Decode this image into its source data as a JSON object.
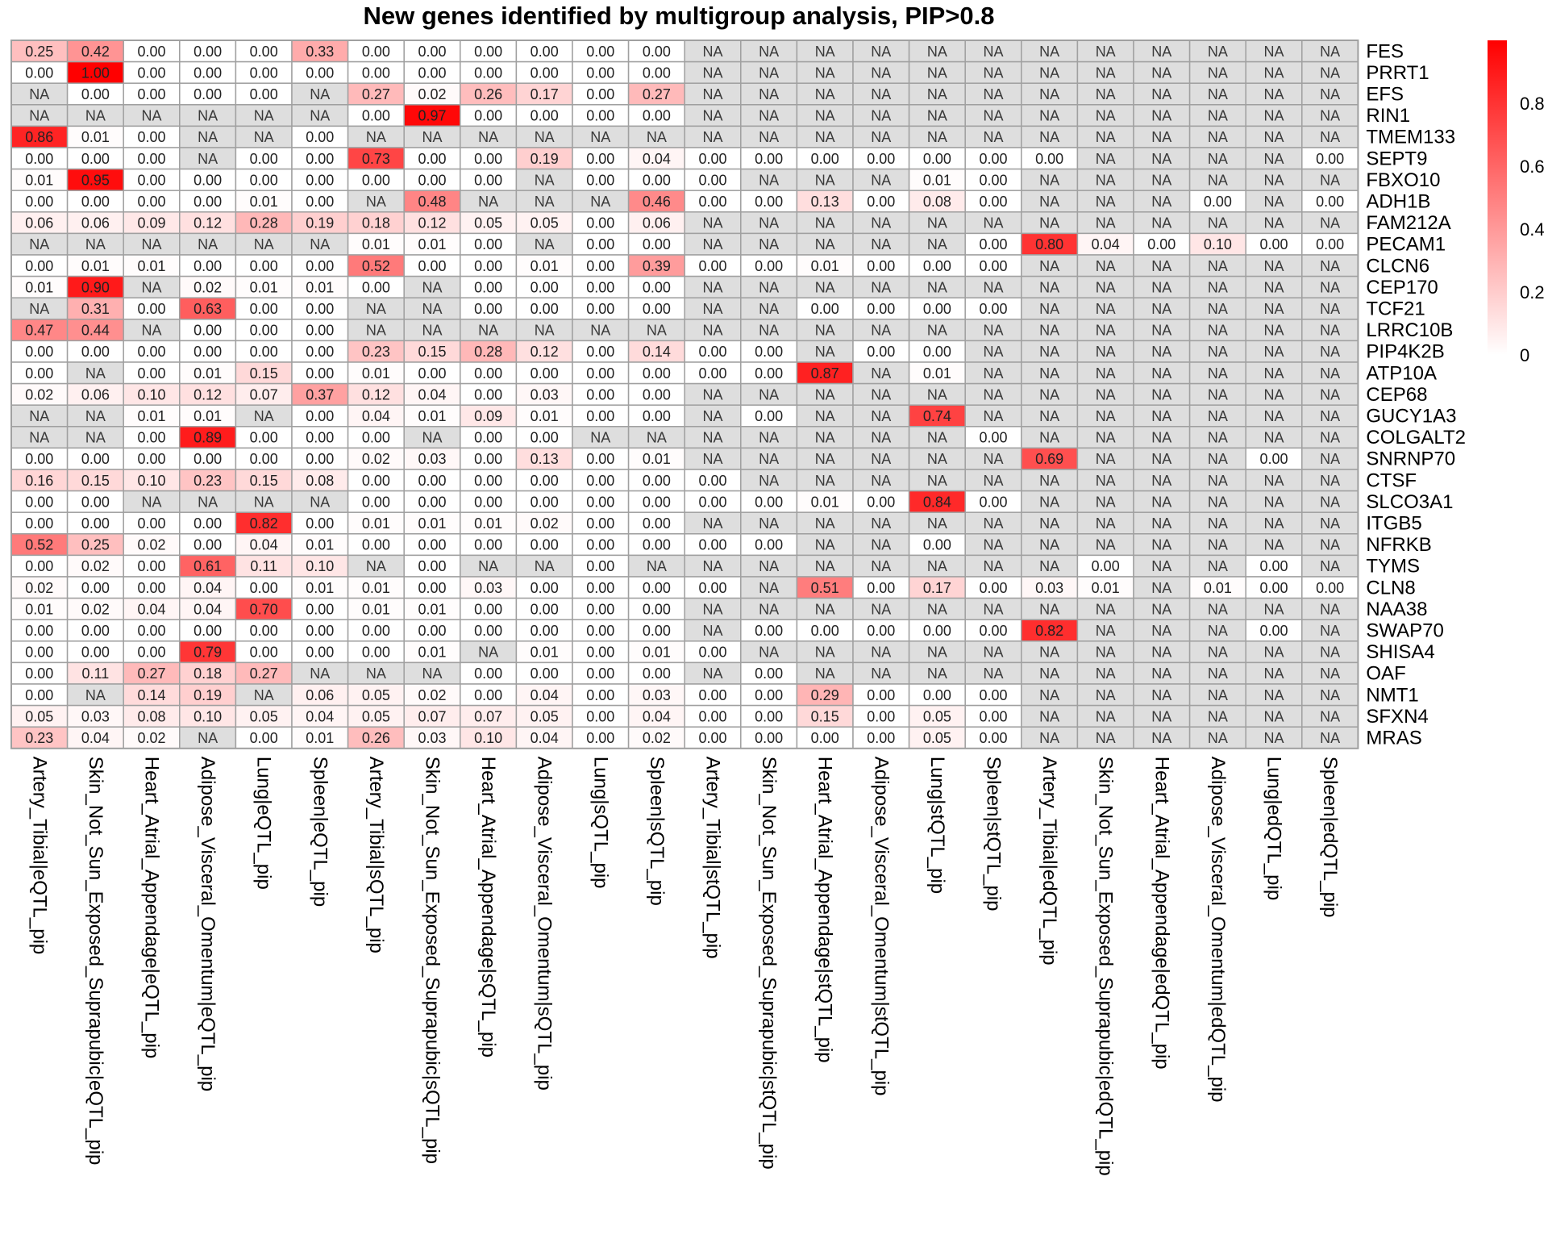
{
  "chart_data": {
    "type": "heatmap",
    "title": "New genes identified by multigroup analysis, PIP>0.8",
    "columns": [
      "Artery_Tibial|eQTL_pip",
      "Skin_Not_Sun_Exposed_Suprapubic|eQTL_pip",
      "Heart_Atrial_Appendage|eQTL_pip",
      "Adipose_Visceral_Omentum|eQTL_pip",
      "Lung|eQTL_pip",
      "Spleen|eQTL_pip",
      "Artery_Tibial|sQTL_pip",
      "Skin_Not_Sun_Exposed_Suprapubic|sQTL_pip",
      "Heart_Atrial_Appendage|sQTL_pip",
      "Adipose_Visceral_Omentum|sQTL_pip",
      "Lung|sQTL_pip",
      "Spleen|sQTL_pip",
      "Artery_Tibial|stQTL_pip",
      "Skin_Not_Sun_Exposed_Suprapubic|stQTL_pip",
      "Heart_Atrial_Appendage|stQTL_pip",
      "Adipose_Visceral_Omentum|stQTL_pip",
      "Lung|stQTL_pip",
      "Spleen|stQTL_pip",
      "Artery_Tibial|edQTL_pip",
      "Skin_Not_Sun_Exposed_Suprapubic|edQTL_pip",
      "Heart_Atrial_Appendage|edQTL_pip",
      "Adipose_Visceral_Omentum|edQTL_pip",
      "Lung|edQTL_pip",
      "Spleen|edQTL_pip"
    ],
    "rows": [
      "FES",
      "PRRT1",
      "EFS",
      "RIN1",
      "TMEM133",
      "SEPT9",
      "FBXO10",
      "ADH1B",
      "FAM212A",
      "PECAM1",
      "CLCN6",
      "CEP170",
      "TCF21",
      "LRRC10B",
      "PIP4K2B",
      "ATP10A",
      "CEP68",
      "GUCY1A3",
      "COLGALT2",
      "SNRNP70",
      "CTSF",
      "SLCO3A1",
      "ITGB5",
      "NFRKB",
      "TYMS",
      "CLN8",
      "NAA38",
      "SWAP70",
      "SHISA4",
      "OAF",
      "NMT1",
      "SFXN4",
      "MRAS"
    ],
    "values": [
      [
        "0.25",
        "0.42",
        "0.00",
        "0.00",
        "0.00",
        "0.33",
        "0.00",
        "0.00",
        "0.00",
        "0.00",
        "0.00",
        "0.00",
        "NA",
        "NA",
        "NA",
        "NA",
        "NA",
        "NA",
        "NA",
        "NA",
        "NA",
        "NA",
        "NA",
        "NA"
      ],
      [
        "0.00",
        "1.00",
        "0.00",
        "0.00",
        "0.00",
        "0.00",
        "0.00",
        "0.00",
        "0.00",
        "0.00",
        "0.00",
        "0.00",
        "NA",
        "NA",
        "NA",
        "NA",
        "NA",
        "NA",
        "NA",
        "NA",
        "NA",
        "NA",
        "NA",
        "NA"
      ],
      [
        "NA",
        "0.00",
        "0.00",
        "0.00",
        "0.00",
        "NA",
        "0.27",
        "0.02",
        "0.26",
        "0.17",
        "0.00",
        "0.27",
        "NA",
        "NA",
        "NA",
        "NA",
        "NA",
        "NA",
        "NA",
        "NA",
        "NA",
        "NA",
        "NA",
        "NA"
      ],
      [
        "NA",
        "NA",
        "NA",
        "NA",
        "NA",
        "NA",
        "0.00",
        "0.97",
        "0.00",
        "0.00",
        "0.00",
        "0.00",
        "NA",
        "NA",
        "NA",
        "NA",
        "NA",
        "NA",
        "NA",
        "NA",
        "NA",
        "NA",
        "NA",
        "NA"
      ],
      [
        "0.86",
        "0.01",
        "0.00",
        "NA",
        "NA",
        "0.00",
        "NA",
        "NA",
        "NA",
        "NA",
        "NA",
        "NA",
        "NA",
        "NA",
        "NA",
        "NA",
        "NA",
        "NA",
        "NA",
        "NA",
        "NA",
        "NA",
        "NA",
        "NA"
      ],
      [
        "0.00",
        "0.00",
        "0.00",
        "NA",
        "0.00",
        "0.00",
        "0.73",
        "0.00",
        "0.00",
        "0.19",
        "0.00",
        "0.04",
        "0.00",
        "0.00",
        "0.00",
        "0.00",
        "0.00",
        "0.00",
        "0.00",
        "NA",
        "NA",
        "NA",
        "NA",
        "0.00"
      ],
      [
        "0.01",
        "0.95",
        "0.00",
        "0.00",
        "0.00",
        "0.00",
        "0.00",
        "0.00",
        "0.00",
        "NA",
        "0.00",
        "0.00",
        "0.00",
        "NA",
        "NA",
        "NA",
        "0.01",
        "0.00",
        "NA",
        "NA",
        "NA",
        "NA",
        "NA",
        "NA"
      ],
      [
        "0.00",
        "0.00",
        "0.00",
        "0.00",
        "0.01",
        "0.00",
        "NA",
        "0.48",
        "NA",
        "NA",
        "NA",
        "0.46",
        "0.00",
        "0.00",
        "0.13",
        "0.00",
        "0.08",
        "0.00",
        "NA",
        "NA",
        "NA",
        "0.00",
        "NA",
        "0.00"
      ],
      [
        "0.06",
        "0.06",
        "0.09",
        "0.12",
        "0.28",
        "0.19",
        "0.18",
        "0.12",
        "0.05",
        "0.05",
        "0.00",
        "0.06",
        "NA",
        "NA",
        "NA",
        "NA",
        "NA",
        "NA",
        "NA",
        "NA",
        "NA",
        "NA",
        "NA",
        "NA"
      ],
      [
        "NA",
        "NA",
        "NA",
        "NA",
        "NA",
        "NA",
        "0.01",
        "0.01",
        "0.00",
        "NA",
        "0.00",
        "0.00",
        "NA",
        "NA",
        "NA",
        "NA",
        "NA",
        "0.00",
        "0.80",
        "0.04",
        "0.00",
        "0.10",
        "0.00",
        "0.00"
      ],
      [
        "0.00",
        "0.01",
        "0.01",
        "0.00",
        "0.00",
        "0.00",
        "0.52",
        "0.00",
        "0.00",
        "0.01",
        "0.00",
        "0.39",
        "0.00",
        "0.00",
        "0.01",
        "0.00",
        "0.00",
        "0.00",
        "NA",
        "NA",
        "NA",
        "NA",
        "NA",
        "NA"
      ],
      [
        "0.01",
        "0.90",
        "NA",
        "0.02",
        "0.01",
        "0.01",
        "0.00",
        "NA",
        "0.00",
        "0.00",
        "0.00",
        "0.00",
        "NA",
        "NA",
        "NA",
        "NA",
        "NA",
        "NA",
        "NA",
        "NA",
        "NA",
        "NA",
        "NA",
        "NA"
      ],
      [
        "NA",
        "0.31",
        "0.00",
        "0.63",
        "0.00",
        "0.00",
        "NA",
        "NA",
        "0.00",
        "0.00",
        "0.00",
        "0.00",
        "NA",
        "NA",
        "0.00",
        "0.00",
        "0.00",
        "0.00",
        "NA",
        "NA",
        "NA",
        "NA",
        "NA",
        "NA"
      ],
      [
        "0.47",
        "0.44",
        "NA",
        "0.00",
        "0.00",
        "0.00",
        "NA",
        "NA",
        "NA",
        "NA",
        "NA",
        "NA",
        "NA",
        "NA",
        "NA",
        "NA",
        "NA",
        "NA",
        "NA",
        "NA",
        "NA",
        "NA",
        "NA",
        "NA"
      ],
      [
        "0.00",
        "0.00",
        "0.00",
        "0.00",
        "0.00",
        "0.00",
        "0.23",
        "0.15",
        "0.28",
        "0.12",
        "0.00",
        "0.14",
        "0.00",
        "0.00",
        "NA",
        "0.00",
        "0.00",
        "NA",
        "NA",
        "NA",
        "NA",
        "NA",
        "NA",
        "NA"
      ],
      [
        "0.00",
        "NA",
        "0.00",
        "0.01",
        "0.15",
        "0.00",
        "0.01",
        "0.00",
        "0.00",
        "0.00",
        "0.00",
        "0.00",
        "0.00",
        "0.00",
        "0.87",
        "NA",
        "0.01",
        "NA",
        "NA",
        "NA",
        "NA",
        "NA",
        "NA",
        "NA"
      ],
      [
        "0.02",
        "0.06",
        "0.10",
        "0.12",
        "0.07",
        "0.37",
        "0.12",
        "0.04",
        "0.00",
        "0.03",
        "0.00",
        "0.00",
        "NA",
        "NA",
        "NA",
        "NA",
        "NA",
        "NA",
        "NA",
        "NA",
        "NA",
        "NA",
        "NA",
        "NA"
      ],
      [
        "NA",
        "NA",
        "0.01",
        "0.01",
        "NA",
        "0.00",
        "0.04",
        "0.01",
        "0.09",
        "0.01",
        "0.00",
        "0.00",
        "NA",
        "0.00",
        "NA",
        "NA",
        "0.74",
        "NA",
        "NA",
        "NA",
        "NA",
        "NA",
        "NA",
        "NA"
      ],
      [
        "NA",
        "NA",
        "0.00",
        "0.89",
        "0.00",
        "0.00",
        "0.00",
        "NA",
        "0.00",
        "0.00",
        "NA",
        "NA",
        "NA",
        "NA",
        "NA",
        "NA",
        "NA",
        "0.00",
        "NA",
        "NA",
        "NA",
        "NA",
        "NA",
        "NA"
      ],
      [
        "0.00",
        "0.00",
        "0.00",
        "0.00",
        "0.00",
        "0.00",
        "0.02",
        "0.03",
        "0.00",
        "0.13",
        "0.00",
        "0.01",
        "NA",
        "NA",
        "NA",
        "NA",
        "NA",
        "NA",
        "0.69",
        "NA",
        "NA",
        "NA",
        "0.00",
        "NA"
      ],
      [
        "0.16",
        "0.15",
        "0.10",
        "0.23",
        "0.15",
        "0.08",
        "0.00",
        "0.00",
        "0.00",
        "0.00",
        "0.00",
        "0.00",
        "0.00",
        "NA",
        "NA",
        "NA",
        "NA",
        "NA",
        "NA",
        "NA",
        "NA",
        "NA",
        "NA",
        "NA"
      ],
      [
        "0.00",
        "0.00",
        "NA",
        "NA",
        "NA",
        "NA",
        "0.00",
        "0.00",
        "0.00",
        "0.00",
        "0.00",
        "0.00",
        "0.00",
        "0.00",
        "0.01",
        "0.00",
        "0.84",
        "0.00",
        "NA",
        "NA",
        "NA",
        "NA",
        "NA",
        "NA"
      ],
      [
        "0.00",
        "0.00",
        "0.00",
        "0.00",
        "0.82",
        "0.00",
        "0.01",
        "0.01",
        "0.01",
        "0.02",
        "0.00",
        "0.00",
        "NA",
        "NA",
        "NA",
        "NA",
        "NA",
        "NA",
        "NA",
        "NA",
        "NA",
        "NA",
        "NA",
        "NA"
      ],
      [
        "0.52",
        "0.25",
        "0.02",
        "0.00",
        "0.04",
        "0.01",
        "0.00",
        "0.00",
        "0.00",
        "0.00",
        "0.00",
        "0.00",
        "0.00",
        "0.00",
        "NA",
        "NA",
        "0.00",
        "NA",
        "NA",
        "NA",
        "NA",
        "NA",
        "NA",
        "NA"
      ],
      [
        "0.00",
        "0.02",
        "0.00",
        "0.61",
        "0.11",
        "0.10",
        "NA",
        "0.00",
        "NA",
        "NA",
        "0.00",
        "NA",
        "NA",
        "NA",
        "NA",
        "NA",
        "NA",
        "NA",
        "NA",
        "0.00",
        "NA",
        "NA",
        "0.00",
        "NA"
      ],
      [
        "0.02",
        "0.00",
        "0.00",
        "0.04",
        "0.00",
        "0.01",
        "0.01",
        "0.00",
        "0.03",
        "0.00",
        "0.00",
        "0.00",
        "0.00",
        "NA",
        "0.51",
        "0.00",
        "0.17",
        "0.00",
        "0.03",
        "0.01",
        "NA",
        "0.01",
        "0.00",
        "0.00"
      ],
      [
        "0.01",
        "0.02",
        "0.04",
        "0.04",
        "0.70",
        "0.00",
        "0.01",
        "0.01",
        "0.00",
        "0.00",
        "0.00",
        "0.00",
        "NA",
        "NA",
        "NA",
        "NA",
        "NA",
        "NA",
        "NA",
        "NA",
        "NA",
        "NA",
        "NA",
        "NA"
      ],
      [
        "0.00",
        "0.00",
        "0.00",
        "0.00",
        "0.00",
        "0.00",
        "0.00",
        "0.00",
        "0.00",
        "0.00",
        "0.00",
        "0.00",
        "NA",
        "0.00",
        "0.00",
        "0.00",
        "0.00",
        "0.00",
        "0.82",
        "NA",
        "NA",
        "NA",
        "0.00",
        "NA"
      ],
      [
        "0.00",
        "0.00",
        "0.00",
        "0.79",
        "0.00",
        "0.00",
        "0.00",
        "0.01",
        "NA",
        "0.01",
        "0.00",
        "0.01",
        "0.00",
        "NA",
        "NA",
        "NA",
        "NA",
        "NA",
        "NA",
        "NA",
        "NA",
        "NA",
        "NA",
        "NA"
      ],
      [
        "0.00",
        "0.11",
        "0.27",
        "0.18",
        "0.27",
        "NA",
        "NA",
        "NA",
        "0.00",
        "0.00",
        "0.00",
        "0.00",
        "NA",
        "0.00",
        "NA",
        "NA",
        "NA",
        "NA",
        "NA",
        "NA",
        "NA",
        "NA",
        "NA",
        "NA"
      ],
      [
        "0.00",
        "NA",
        "0.14",
        "0.19",
        "NA",
        "0.06",
        "0.05",
        "0.02",
        "0.00",
        "0.04",
        "0.00",
        "0.03",
        "0.00",
        "0.00",
        "0.29",
        "0.00",
        "0.00",
        "0.00",
        "NA",
        "NA",
        "NA",
        "NA",
        "NA",
        "NA"
      ],
      [
        "0.05",
        "0.03",
        "0.08",
        "0.10",
        "0.05",
        "0.04",
        "0.05",
        "0.07",
        "0.07",
        "0.05",
        "0.00",
        "0.04",
        "0.00",
        "0.00",
        "0.15",
        "0.00",
        "0.05",
        "0.00",
        "NA",
        "NA",
        "NA",
        "NA",
        "NA",
        "NA"
      ],
      [
        "0.23",
        "0.04",
        "0.02",
        "NA",
        "0.00",
        "0.01",
        "0.26",
        "0.03",
        "0.10",
        "0.04",
        "0.00",
        "0.02",
        "0.00",
        "0.00",
        "0.00",
        "0.00",
        "0.05",
        "0.00",
        "NA",
        "NA",
        "NA",
        "NA",
        "NA",
        "NA"
      ]
    ],
    "na_label": "NA",
    "colorscale": {
      "low": "#ffffff",
      "high": "#ff0000",
      "na": "#dedede",
      "range": [
        0,
        1
      ]
    },
    "legend": {
      "ticks": [
        0,
        0.2,
        0.4,
        0.6,
        0.8
      ],
      "tick_labels": [
        "0",
        "0.2",
        "0.4",
        "0.6",
        "0.8"
      ],
      "placement": "top-right"
    },
    "colors": {
      "grid": "#a0a0a0",
      "text": "#000000"
    }
  }
}
